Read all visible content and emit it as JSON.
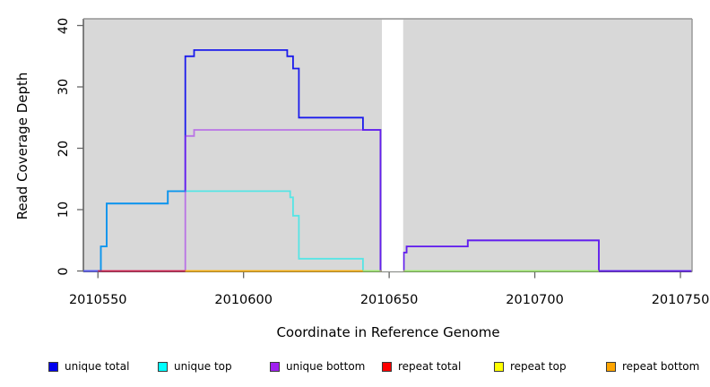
{
  "chart_data": {
    "type": "line",
    "subtype": "step-coverage-plot",
    "title": "",
    "xlabel": "Coordinate in Reference Genome",
    "ylabel": "Read Coverage Depth",
    "xlim": [
      2010545,
      2010754
    ],
    "ylim": [
      0,
      41
    ],
    "x_ticks": [
      "2010550",
      "2010600",
      "2010650",
      "2010700",
      "2010750"
    ],
    "y_ticks": [
      "0",
      "10",
      "20",
      "30",
      "40"
    ],
    "plot_bg": "#d8d8d8",
    "page_bg": "#ffffff",
    "grid": "off",
    "legend_position": "bottom",
    "gap_region": [
      2010647.5,
      2010654.8
    ],
    "series": [
      {
        "name": "unique total",
        "color": "#0000ee",
        "opacity": 0.88,
        "points": [
          [
            2010545,
            0
          ],
          [
            2010551,
            4
          ],
          [
            2010553,
            11
          ],
          [
            2010574,
            13
          ],
          [
            2010580,
            35
          ],
          [
            2010583,
            36
          ],
          [
            2010615,
            35
          ],
          [
            2010617,
            33
          ],
          [
            2010619,
            25
          ],
          [
            2010641,
            23
          ],
          [
            2010647,
            0
          ],
          [
            2010655,
            3
          ],
          [
            2010656,
            4
          ],
          [
            2010677,
            5
          ],
          [
            2010722,
            0
          ],
          [
            2010754,
            0
          ]
        ]
      },
      {
        "name": "unique top",
        "color": "#00eeee",
        "opacity": 0.6,
        "points": [
          [
            2010545,
            0
          ],
          [
            2010551,
            4
          ],
          [
            2010553,
            11
          ],
          [
            2010574,
            13
          ],
          [
            2010616,
            12
          ],
          [
            2010617,
            9
          ],
          [
            2010619,
            2
          ],
          [
            2010641,
            0
          ],
          [
            2010722,
            0
          ]
        ]
      },
      {
        "name": "unique bottom",
        "color": "#a020f0",
        "opacity": 0.55,
        "points": [
          [
            2010545,
            0
          ],
          [
            2010580,
            22
          ],
          [
            2010583,
            23
          ],
          [
            2010647,
            0
          ],
          [
            2010655,
            3
          ],
          [
            2010656,
            4
          ],
          [
            2010677,
            5
          ],
          [
            2010722,
            0
          ],
          [
            2010754,
            0
          ]
        ]
      },
      {
        "name": "repeat total",
        "color": "#ee0000",
        "opacity": 0.62,
        "points": [
          [
            2010550,
            0
          ],
          [
            2010580,
            0
          ]
        ]
      },
      {
        "name": "repeat top",
        "color": "#ffff00",
        "opacity": 0.5,
        "points": [
          [
            2010580,
            0
          ],
          [
            2010722,
            0
          ]
        ]
      },
      {
        "name": "repeat bottom",
        "color": "#ffa500",
        "opacity": 0.85,
        "points": [
          [
            2010580,
            0
          ],
          [
            2010641,
            0
          ]
        ]
      }
    ],
    "legend": [
      {
        "label": "unique total",
        "color": "#0000ee"
      },
      {
        "label": "unique top",
        "color": "#00ffff"
      },
      {
        "label": "unique bottom",
        "color": "#a020f0"
      },
      {
        "label": "repeat total",
        "color": "#ff0000"
      },
      {
        "label": "repeat top",
        "color": "#ffff00"
      },
      {
        "label": "repeat bottom",
        "color": "#ffa500"
      }
    ],
    "axis_colors": {
      "box_dark": "#454545",
      "box_light": "#949494",
      "tick": "#666666"
    }
  }
}
